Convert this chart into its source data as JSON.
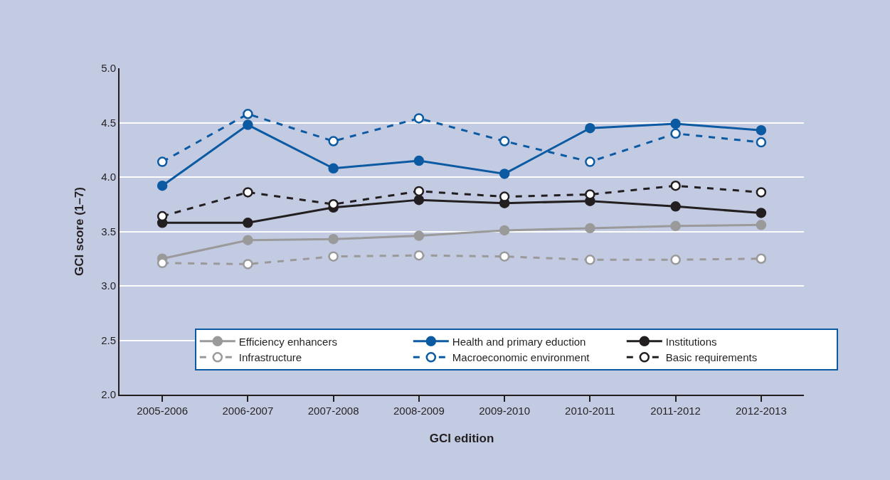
{
  "chart_data": {
    "type": "line",
    "xlabel": "GCI edition",
    "ylabel": "GCI score (1–7)",
    "categories": [
      "2005-2006",
      "2006-2007",
      "2007-2008",
      "2008-2009",
      "2009-2010",
      "2010-2011",
      "2011-2012",
      "2012-2013"
    ],
    "series": [
      {
        "name": "Efficiency enhancers",
        "color": "#9a9a9a",
        "line_style": "solid",
        "values": [
          3.25,
          3.42,
          3.43,
          3.46,
          3.51,
          3.53,
          3.55,
          3.56
        ]
      },
      {
        "name": "Health and primary eduction",
        "color": "#0b5aa2",
        "line_style": "solid",
        "values": [
          3.92,
          4.48,
          4.08,
          4.15,
          4.03,
          4.45,
          4.49,
          4.43
        ]
      },
      {
        "name": "Institutions",
        "color": "#231f20",
        "line_style": "solid",
        "values": [
          3.58,
          3.58,
          3.72,
          3.79,
          3.76,
          3.78,
          3.73,
          3.67
        ]
      },
      {
        "name": "Infrastructure",
        "color": "#9a9a9a",
        "line_style": "dashed",
        "values": [
          3.21,
          3.2,
          3.27,
          3.28,
          3.27,
          3.24,
          3.24,
          3.25
        ]
      },
      {
        "name": "Macroeconomic environment",
        "color": "#0b5aa2",
        "line_style": "dashed",
        "values": [
          4.14,
          4.58,
          4.33,
          4.54,
          4.33,
          4.14,
          4.4,
          4.32
        ]
      },
      {
        "name": "Basic requirements",
        "color": "#231f20",
        "line_style": "dashed",
        "values": [
          3.64,
          3.86,
          3.75,
          3.87,
          3.82,
          3.84,
          3.92,
          3.86
        ]
      }
    ],
    "ylim": [
      2.0,
      5.0
    ],
    "yticks": [
      {
        "value": 2,
        "label": "2.0"
      },
      {
        "value": 2.5,
        "label": "2.5"
      },
      {
        "value": 3,
        "label": "3.0"
      },
      {
        "value": 3.5,
        "label": "3.5"
      },
      {
        "value": 4,
        "label": "4.0"
      },
      {
        "value": 4.5,
        "label": "4.5"
      },
      {
        "value": 5,
        "label": "5.0"
      }
    ],
    "grid": "y",
    "legend": "bottom",
    "marker": "circle"
  }
}
